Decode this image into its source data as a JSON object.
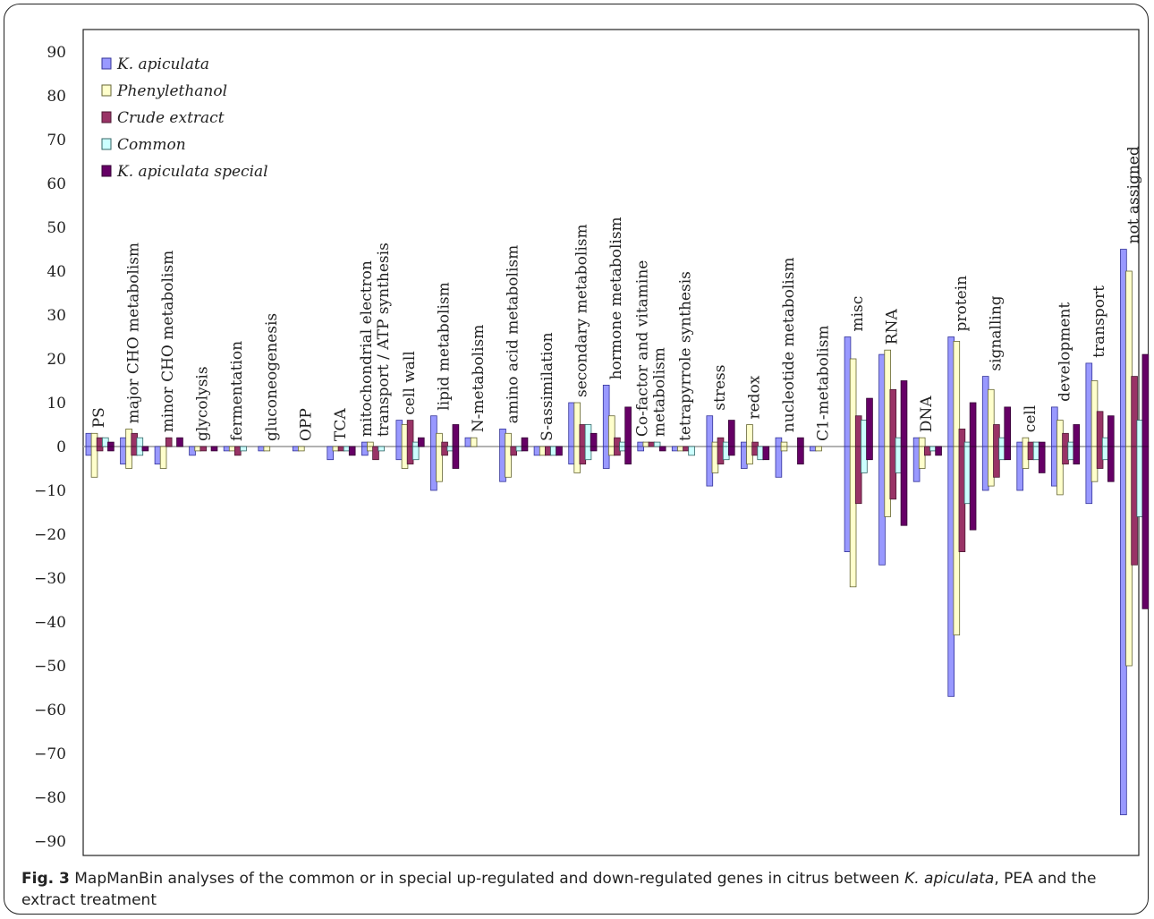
{
  "chart_data": {
    "type": "bar",
    "ylim": [
      -90,
      90
    ],
    "yticks": [
      90,
      80,
      70,
      60,
      50,
      40,
      30,
      20,
      10,
      0,
      -10,
      -20,
      -30,
      -40,
      -50,
      -60,
      -70,
      -80,
      -90
    ],
    "legend_position": "top-left",
    "grid": false,
    "series": [
      {
        "name": "K. apiculata",
        "color": "#9999FF",
        "edge": "#333399"
      },
      {
        "name": "Phenylethanol",
        "color": "#FFFFCC",
        "edge": "#666633"
      },
      {
        "name": "Crude extract",
        "color": "#993366",
        "edge": "#4d1a33"
      },
      {
        "name": "Common",
        "color": "#CCFFFF",
        "edge": "#336666"
      },
      {
        "name": "K. apiculata special",
        "color": "#660066",
        "edge": "#330033"
      }
    ],
    "categories": [
      {
        "label": [
          "PS"
        ],
        "up": [
          3,
          3,
          2,
          2,
          1
        ],
        "down": [
          -2,
          -7,
          -1,
          0,
          -1
        ]
      },
      {
        "label": [
          "major CHO metabolism"
        ],
        "up": [
          2,
          4,
          3,
          2,
          0
        ],
        "down": [
          -4,
          -5,
          -2,
          -2,
          -1
        ]
      },
      {
        "label": [
          "minor CHO metabolism"
        ],
        "up": [
          0,
          0,
          2,
          0,
          2
        ],
        "down": [
          -4,
          -5,
          0,
          0,
          0
        ]
      },
      {
        "label": [
          "glycolysis"
        ],
        "up": [
          0,
          0,
          0,
          0,
          0
        ],
        "down": [
          -2,
          -1,
          -1,
          0,
          -1
        ]
      },
      {
        "label": [
          "fermentation"
        ],
        "up": [
          0,
          0,
          0,
          0,
          0
        ],
        "down": [
          -1,
          -1,
          -2,
          -1,
          0
        ]
      },
      {
        "label": [
          "gluconeogenesis"
        ],
        "up": [
          0,
          0,
          0,
          0,
          0
        ],
        "down": [
          -1,
          -1,
          0,
          0,
          0
        ]
      },
      {
        "label": [
          "OPP"
        ],
        "up": [
          0,
          0,
          0,
          0,
          0
        ],
        "down": [
          -1,
          -1,
          0,
          0,
          0
        ]
      },
      {
        "label": [
          "TCA"
        ],
        "up": [
          0,
          0,
          0,
          0,
          0
        ],
        "down": [
          -3,
          -1,
          -1,
          -1,
          -2
        ]
      },
      {
        "label": [
          "mitochondrial electron",
          "transport / ATP synthesis"
        ],
        "up": [
          1,
          1,
          0,
          0,
          0
        ],
        "down": [
          -2,
          -1,
          -3,
          -1,
          0
        ]
      },
      {
        "label": [
          "cell wall"
        ],
        "up": [
          6,
          5,
          6,
          1,
          2
        ],
        "down": [
          -3,
          -5,
          -4,
          -3,
          0
        ]
      },
      {
        "label": [
          "lipid metabolism"
        ],
        "up": [
          7,
          3,
          1,
          0,
          5
        ],
        "down": [
          -10,
          -8,
          -2,
          -1,
          -5
        ]
      },
      {
        "label": [
          "N-metabolism"
        ],
        "up": [
          2,
          2,
          0,
          0,
          0
        ],
        "down": [
          0,
          0,
          0,
          0,
          0
        ]
      },
      {
        "label": [
          "amino acid metabolism"
        ],
        "up": [
          4,
          3,
          0,
          0,
          2
        ],
        "down": [
          -8,
          -7,
          -2,
          -1,
          -1
        ]
      },
      {
        "label": [
          "S-assimilation"
        ],
        "up": [
          0,
          0,
          0,
          0,
          0
        ],
        "down": [
          -2,
          -2,
          -2,
          -2,
          -2
        ]
      },
      {
        "label": [
          "secondary metabolism"
        ],
        "up": [
          10,
          10,
          5,
          5,
          3
        ],
        "down": [
          -4,
          -6,
          -4,
          -3,
          -1
        ]
      },
      {
        "label": [
          "hormone metabolism"
        ],
        "up": [
          14,
          7,
          2,
          1,
          9
        ],
        "down": [
          -5,
          -2,
          -2,
          -1,
          -4
        ]
      },
      {
        "label": [
          "Co-factor and vitamine",
          "metabolism"
        ],
        "up": [
          1,
          1,
          1,
          1,
          0
        ],
        "down": [
          -1,
          0,
          0,
          0,
          -1
        ]
      },
      {
        "label": [
          "tetrapyrrole synthesis"
        ],
        "up": [
          0,
          0,
          0,
          0,
          0
        ],
        "down": [
          -1,
          -1,
          -1,
          -2,
          0
        ]
      },
      {
        "label": [
          "stress"
        ],
        "up": [
          7,
          1,
          2,
          1,
          6
        ],
        "down": [
          -9,
          -6,
          -4,
          -3,
          -2
        ]
      },
      {
        "label": [
          "redox"
        ],
        "up": [
          1,
          5,
          1,
          0,
          0
        ],
        "down": [
          -5,
          -4,
          -2,
          -3,
          -3
        ]
      },
      {
        "label": [
          "nucleotide metabolism"
        ],
        "up": [
          2,
          1,
          0,
          0,
          2
        ],
        "down": [
          -7,
          -1,
          0,
          0,
          -4
        ]
      },
      {
        "label": [
          "C1-metabolism"
        ],
        "up": [
          0,
          0,
          0,
          0,
          0
        ],
        "down": [
          -1,
          -1,
          0,
          0,
          0
        ]
      },
      {
        "label": [
          "misc"
        ],
        "up": [
          25,
          20,
          7,
          6,
          11
        ],
        "down": [
          -24,
          -32,
          -13,
          -6,
          -3
        ]
      },
      {
        "label": [
          "RNA"
        ],
        "up": [
          21,
          22,
          13,
          2,
          15
        ],
        "down": [
          -27,
          -16,
          -12,
          -6,
          -18
        ]
      },
      {
        "label": [
          "DNA"
        ],
        "up": [
          2,
          2,
          0,
          0,
          0
        ],
        "down": [
          -8,
          -5,
          -2,
          -1,
          -2
        ]
      },
      {
        "label": [
          "protein"
        ],
        "up": [
          25,
          24,
          4,
          1,
          10
        ],
        "down": [
          -57,
          -43,
          -24,
          -13,
          -19
        ]
      },
      {
        "label": [
          "signalling"
        ],
        "up": [
          16,
          13,
          5,
          2,
          9
        ],
        "down": [
          -10,
          -9,
          -7,
          -3,
          -3
        ]
      },
      {
        "label": [
          "cell"
        ],
        "up": [
          1,
          2,
          1,
          1,
          1
        ],
        "down": [
          -10,
          -5,
          -3,
          -3,
          -6
        ]
      },
      {
        "label": [
          "development"
        ],
        "up": [
          9,
          6,
          3,
          1,
          5
        ],
        "down": [
          -9,
          -11,
          -4,
          -3,
          -4
        ]
      },
      {
        "label": [
          "transport"
        ],
        "up": [
          19,
          15,
          8,
          2,
          7
        ],
        "down": [
          -13,
          -8,
          -5,
          -3,
          -8
        ]
      },
      {
        "label": [
          "not assigned"
        ],
        "up": [
          45,
          40,
          16,
          6,
          21
        ],
        "down": [
          -84,
          -50,
          -27,
          -16,
          -37
        ]
      }
    ]
  },
  "caption": {
    "fig_label": "Fig. 3",
    "text_1": " MapManBin analyses of the common or in special up-regulated and down-regulated genes in citrus between ",
    "species": "K. apiculata",
    "text_2": ", PEA and the extract treatment"
  }
}
